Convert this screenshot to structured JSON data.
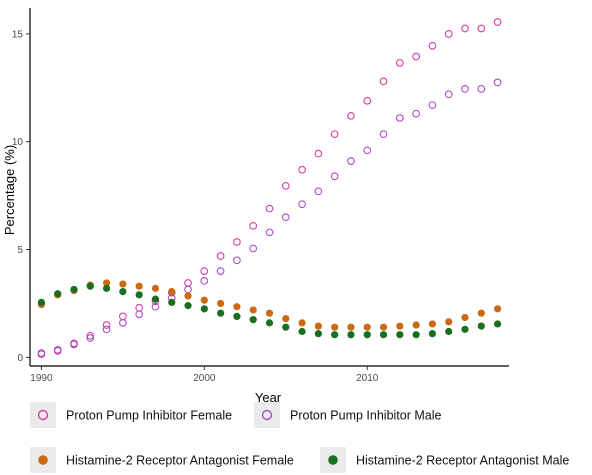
{
  "chart_data": {
    "type": "scatter",
    "title": "",
    "xlabel": "Year",
    "ylabel": "Percentage (%)",
    "xlim": [
      1989.3,
      2018.7
    ],
    "ylim": [
      -0.4,
      16.2
    ],
    "x_ticks": [
      1990,
      2000,
      2010
    ],
    "y_ticks": [
      0,
      5,
      10,
      15
    ],
    "grid": false,
    "legend_position": "bottom",
    "x": [
      1990,
      1991,
      1992,
      1993,
      1994,
      1995,
      1996,
      1997,
      1998,
      1999,
      2000,
      2001,
      2002,
      2003,
      2004,
      2005,
      2006,
      2007,
      2008,
      2009,
      2010,
      2011,
      2012,
      2013,
      2014,
      2015,
      2016,
      2017,
      2018
    ],
    "series": [
      {
        "name": "Proton Pump Inhibitor Female",
        "color": "#d63fa0",
        "marker": "open-circle",
        "values": [
          0.2,
          0.35,
          0.65,
          1.0,
          1.5,
          1.9,
          2.3,
          2.6,
          3.0,
          3.45,
          4.0,
          4.7,
          5.35,
          6.1,
          6.9,
          7.95,
          8.7,
          9.45,
          10.35,
          11.2,
          11.9,
          12.8,
          13.65,
          13.95,
          14.45,
          15.0,
          15.25,
          15.25,
          15.55
        ]
      },
      {
        "name": "Proton Pump Inhibitor Male",
        "color": "#a84ec8",
        "marker": "open-circle",
        "values": [
          0.15,
          0.3,
          0.6,
          0.9,
          1.3,
          1.6,
          2.0,
          2.35,
          2.75,
          3.15,
          3.55,
          4.0,
          4.5,
          5.05,
          5.8,
          6.5,
          7.1,
          7.7,
          8.4,
          9.1,
          9.6,
          10.35,
          11.1,
          11.3,
          11.7,
          12.2,
          12.45,
          12.45,
          12.75
        ]
      },
      {
        "name": "Histamine-2 Receptor Antagonist Female",
        "color": "#cc6a14",
        "marker": "filled-circle",
        "values": [
          2.45,
          2.9,
          3.1,
          3.35,
          3.45,
          3.4,
          3.3,
          3.2,
          3.05,
          2.85,
          2.65,
          2.5,
          2.35,
          2.2,
          2.05,
          1.8,
          1.6,
          1.45,
          1.4,
          1.4,
          1.4,
          1.4,
          1.45,
          1.5,
          1.55,
          1.65,
          1.85,
          2.05,
          2.25
        ]
      },
      {
        "name": "Histamine-2 Receptor Antagonist Male",
        "color": "#1a6e1f",
        "marker": "filled-circle",
        "values": [
          2.55,
          2.95,
          3.15,
          3.3,
          3.2,
          3.05,
          2.9,
          2.7,
          2.55,
          2.4,
          2.25,
          2.05,
          1.9,
          1.75,
          1.6,
          1.4,
          1.2,
          1.1,
          1.05,
          1.05,
          1.05,
          1.05,
          1.05,
          1.05,
          1.1,
          1.2,
          1.3,
          1.45,
          1.55
        ]
      }
    ]
  }
}
